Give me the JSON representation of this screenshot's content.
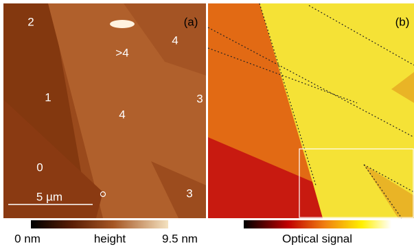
{
  "panels": [
    {
      "label": "(a)",
      "annotations": [
        "2",
        ">4",
        "4",
        "1",
        "3",
        "4",
        "0",
        "3"
      ],
      "scale_bar": "5 µm"
    },
    {
      "label": "(b)"
    }
  ],
  "colorbars": [
    {
      "min_label": "0 nm",
      "title": "height",
      "max_label": "9.5 nm"
    },
    {
      "title": "Optical signal"
    }
  ]
}
